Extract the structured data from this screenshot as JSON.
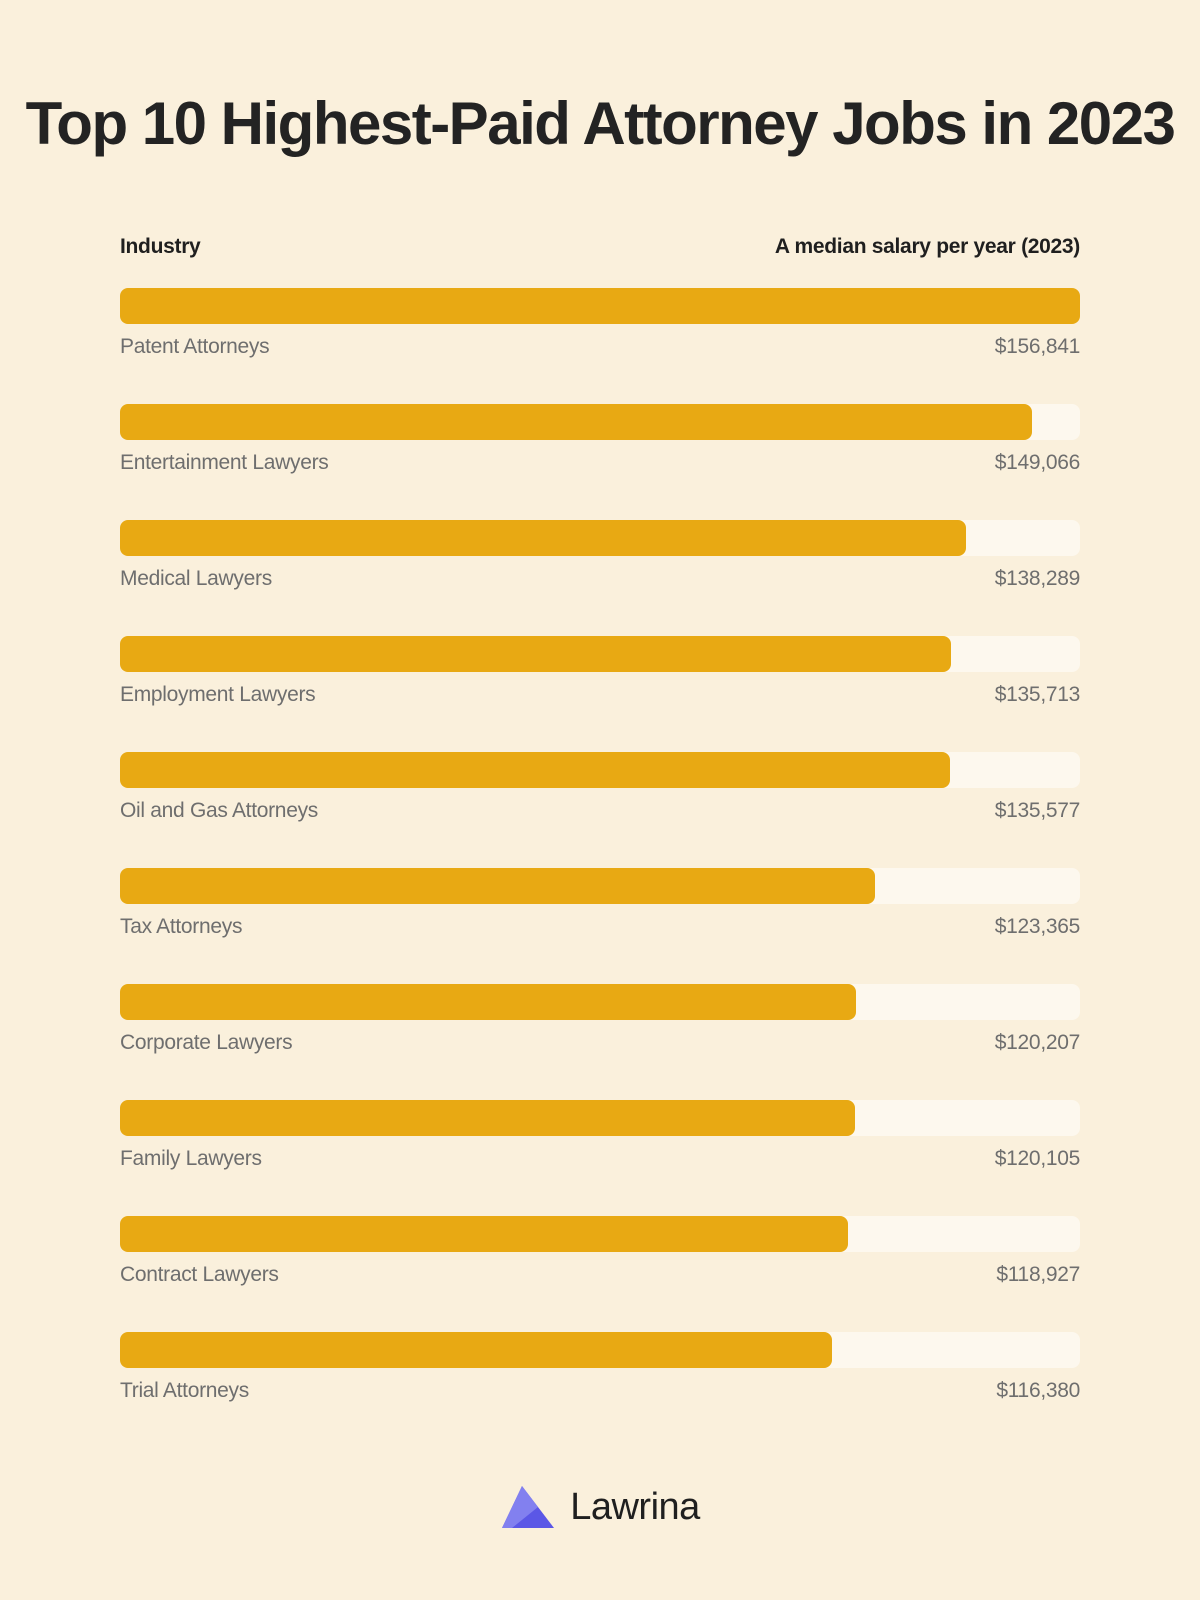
{
  "title": "Top 10 Highest-Paid Attorney Jobs in 2023",
  "headers": {
    "left": "Industry",
    "right": "A median salary per year (2023)"
  },
  "colors": {
    "background": "#FAF0DC",
    "bar": "#E8A913",
    "track": "#FDF8EE",
    "logo_mark": "#5B57E6"
  },
  "chart_data": {
    "type": "bar",
    "orientation": "horizontal",
    "categories": [
      "Patent Attorneys",
      "Entertainment Lawyers",
      "Medical Lawyers",
      "Employment Lawyers",
      "Oil and Gas Attorneys",
      "Tax Attorneys",
      "Corporate Lawyers",
      "Family Lawyers",
      "Contract Lawyers",
      "Trial Attorneys"
    ],
    "values": [
      156841,
      149066,
      138289,
      135713,
      135577,
      123365,
      120207,
      120105,
      118927,
      116380
    ],
    "value_labels": [
      "$156,841",
      "$149,066",
      "$138,289",
      "$135,713",
      "$135,577",
      "$123,365",
      "$120,207",
      "$120,105",
      "$118,927",
      "$116,380"
    ],
    "xlim": [
      0,
      156841
    ],
    "grid": false,
    "legend": "none"
  },
  "logo": {
    "icon": "lawrina-logo-icon",
    "text": "Lawrina"
  }
}
